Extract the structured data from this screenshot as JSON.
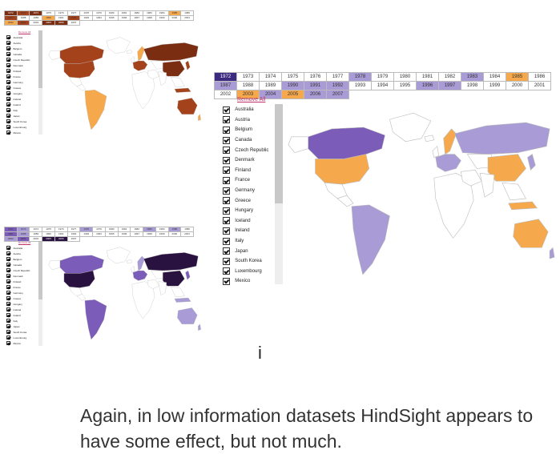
{
  "years": [
    "1972",
    "1973",
    "1974",
    "1975",
    "1976",
    "1977",
    "1978",
    "1979",
    "1980",
    "1981",
    "1982",
    "1983",
    "1984",
    "1985",
    "1986",
    "1987",
    "1988",
    "1989",
    "1990",
    "1991",
    "1992",
    "1993",
    "1994",
    "1995",
    "1996",
    "1997",
    "1998",
    "1999",
    "2000",
    "2001",
    "2002",
    "2003",
    "2004",
    "2005",
    "2006",
    "2007"
  ],
  "remove_all_label": "Remove All",
  "countries": [
    "Australia",
    "Austria",
    "Belgium",
    "Canada",
    "Czech Republic",
    "Denmark",
    "Finland",
    "France",
    "Germany",
    "Greece",
    "Hungary",
    "Iceland",
    "Ireland",
    "Italy",
    "Japan",
    "South Korea",
    "Luxembourg",
    "Mexico"
  ],
  "caption_mark": "i",
  "caption": "Again, in low information datasets HindSight appears to have some effect, but not much.",
  "colors": {
    "purple": "#a89bd6",
    "purple_dark": "#7b5cb8",
    "purple_darkest": "#2a1240",
    "orange": "#f6a94c",
    "orange_dark": "#a4421c",
    "brown": "#7b2d12",
    "land": "#ffffff",
    "highlight_head": "#3b2a80"
  }
}
